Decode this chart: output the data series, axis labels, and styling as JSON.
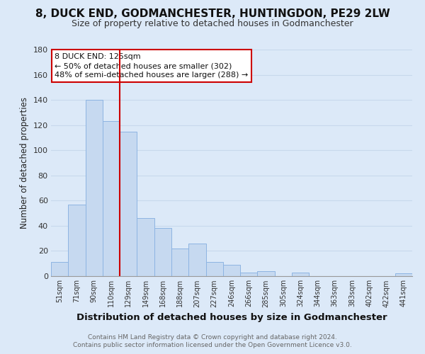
{
  "title": "8, DUCK END, GODMANCHESTER, HUNTINGDON, PE29 2LW",
  "subtitle": "Size of property relative to detached houses in Godmanchester",
  "xlabel": "Distribution of detached houses by size in Godmanchester",
  "ylabel": "Number of detached properties",
  "categories": [
    "51sqm",
    "71sqm",
    "90sqm",
    "110sqm",
    "129sqm",
    "149sqm",
    "168sqm",
    "188sqm",
    "207sqm",
    "227sqm",
    "246sqm",
    "266sqm",
    "285sqm",
    "305sqm",
    "324sqm",
    "344sqm",
    "363sqm",
    "383sqm",
    "402sqm",
    "422sqm",
    "441sqm"
  ],
  "values": [
    11,
    57,
    140,
    123,
    115,
    46,
    38,
    22,
    26,
    11,
    9,
    3,
    4,
    0,
    3,
    0,
    0,
    0,
    0,
    0,
    2
  ],
  "bar_color": "#c6d9f0",
  "bar_edge_color": "#8db4e2",
  "annotation_title": "8 DUCK END: 125sqm",
  "annotation_line1": "← 50% of detached houses are smaller (302)",
  "annotation_line2": "48% of semi-detached houses are larger (288) →",
  "annotation_box_color": "#ffffff",
  "annotation_box_edge_color": "#cc0000",
  "highlight_line_color": "#cc0000",
  "ylim": [
    0,
    180
  ],
  "yticks": [
    0,
    20,
    40,
    60,
    80,
    100,
    120,
    140,
    160,
    180
  ],
  "footer1": "Contains HM Land Registry data © Crown copyright and database right 2024.",
  "footer2": "Contains public sector information licensed under the Open Government Licence v3.0.",
  "grid_color": "#c8d8ec",
  "background_color": "#dce9f8",
  "title_fontsize": 11,
  "subtitle_fontsize": 9,
  "ylabel_fontsize": 8.5,
  "xlabel_fontsize": 9.5
}
